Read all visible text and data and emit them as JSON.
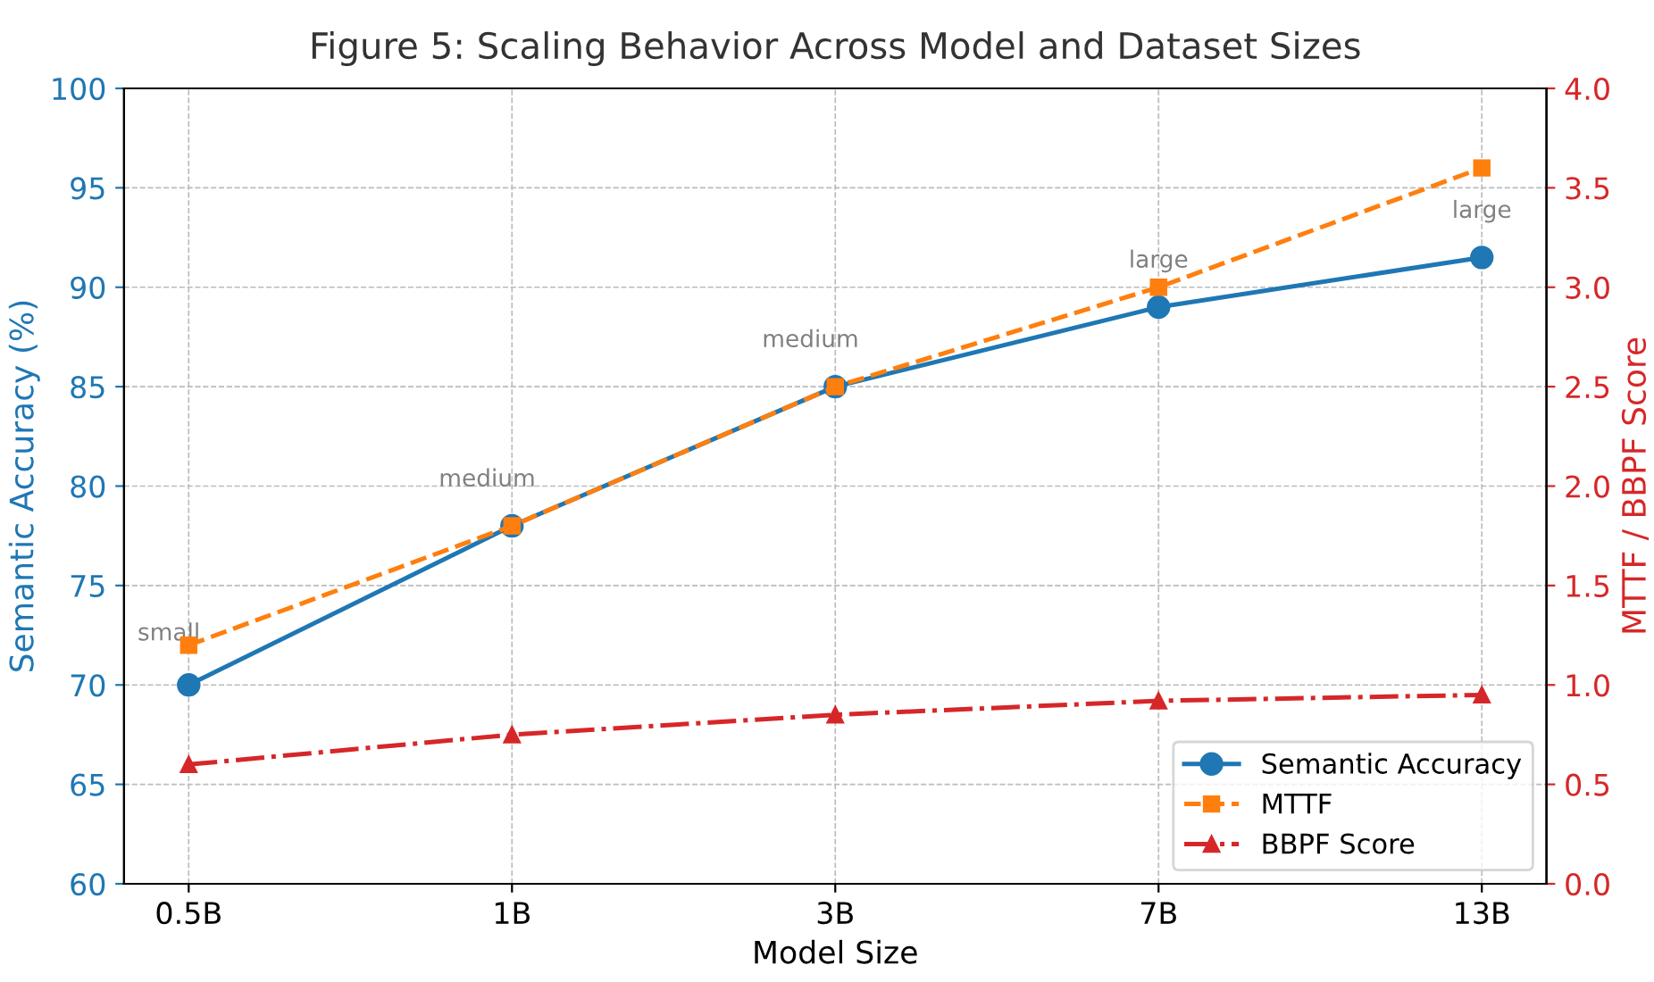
{
  "chart_data": {
    "type": "line",
    "title": "Figure 5: Scaling Behavior Across Model and Dataset Sizes",
    "xlabel": "Model Size",
    "ylabel": "Semantic Accuracy (%)",
    "y2label": "MTTF / BBPF Score",
    "categories": [
      "0.5B",
      "1B",
      "3B",
      "7B",
      "13B"
    ],
    "series": [
      {
        "name": "Semantic Accuracy",
        "color": "#1f77b4",
        "values": [
          70,
          78,
          85,
          89,
          91.5
        ],
        "marker": "circle",
        "line_style": "solid"
      },
      {
        "name": "MTTF",
        "color": "#ff7f0e",
        "values": [
          1.2,
          1.8,
          2.5,
          3.0,
          3.6
        ],
        "axis": "y2",
        "marker": "square",
        "line_style": "dashed"
      },
      {
        "name": "BBPF Score",
        "color": "#d62728",
        "values": [
          0.6,
          0.75,
          0.85,
          0.92,
          0.95
        ],
        "axis": "y2",
        "marker": "triangle",
        "line_style": "dashdot"
      }
    ],
    "ylim": [
      60,
      100
    ],
    "yticks": [
      60,
      65,
      70,
      75,
      80,
      85,
      90,
      95,
      100
    ],
    "y2lim": [
      0,
      4
    ],
    "y2ticks": [
      {
        "value": 0,
        "label": "0.0"
      },
      {
        "value": 0.5,
        "label": "0.5"
      },
      {
        "value": 1,
        "label": "1.0"
      },
      {
        "value": 1.5,
        "label": "1.5"
      },
      {
        "value": 2,
        "label": "2.0"
      },
      {
        "value": 2.5,
        "label": "2.5"
      },
      {
        "value": 3,
        "label": "3.0"
      },
      {
        "value": 3.5,
        "label": "3.5"
      },
      {
        "value": 4,
        "label": "4.0"
      }
    ],
    "annotations": [
      "small",
      "medium",
      "medium",
      "large",
      "large"
    ],
    "grid": true,
    "legend": "bottom right"
  }
}
